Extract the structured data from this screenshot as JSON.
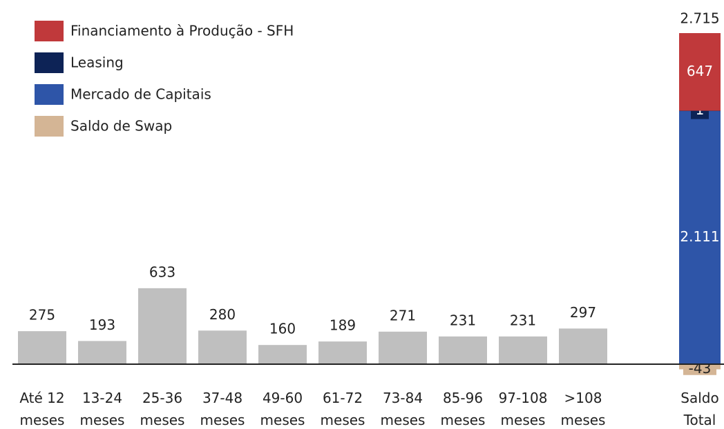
{
  "chart_data": {
    "type": "bar",
    "categories": [
      "Até 12 meses",
      "13-24 meses",
      "25-36 meses",
      "37-48 meses",
      "49-60 meses",
      "61-72 meses",
      "73-84 meses",
      "85-96 meses",
      "97-108 meses",
      ">108 meses"
    ],
    "values": [
      275,
      193,
      633,
      280,
      160,
      189,
      271,
      231,
      231,
      297
    ],
    "color": "#bfbfbf",
    "total": {
      "category": "Saldo Total",
      "value": 2715,
      "value_label": "2.715",
      "series": [
        {
          "name": "Financiamento à Produção - SFH",
          "color": "#c0393b",
          "values": [
            647
          ]
        },
        {
          "name": "Leasing",
          "color": "#0d2356",
          "values": [
            1
          ]
        },
        {
          "name": "Mercado de Capitais",
          "color": "#2e55a8",
          "values": [
            2111
          ],
          "value_labels": [
            "2.111"
          ]
        },
        {
          "name": "Saldo de Swap",
          "color": "#d4b595",
          "values": [
            -43
          ]
        }
      ]
    }
  }
}
